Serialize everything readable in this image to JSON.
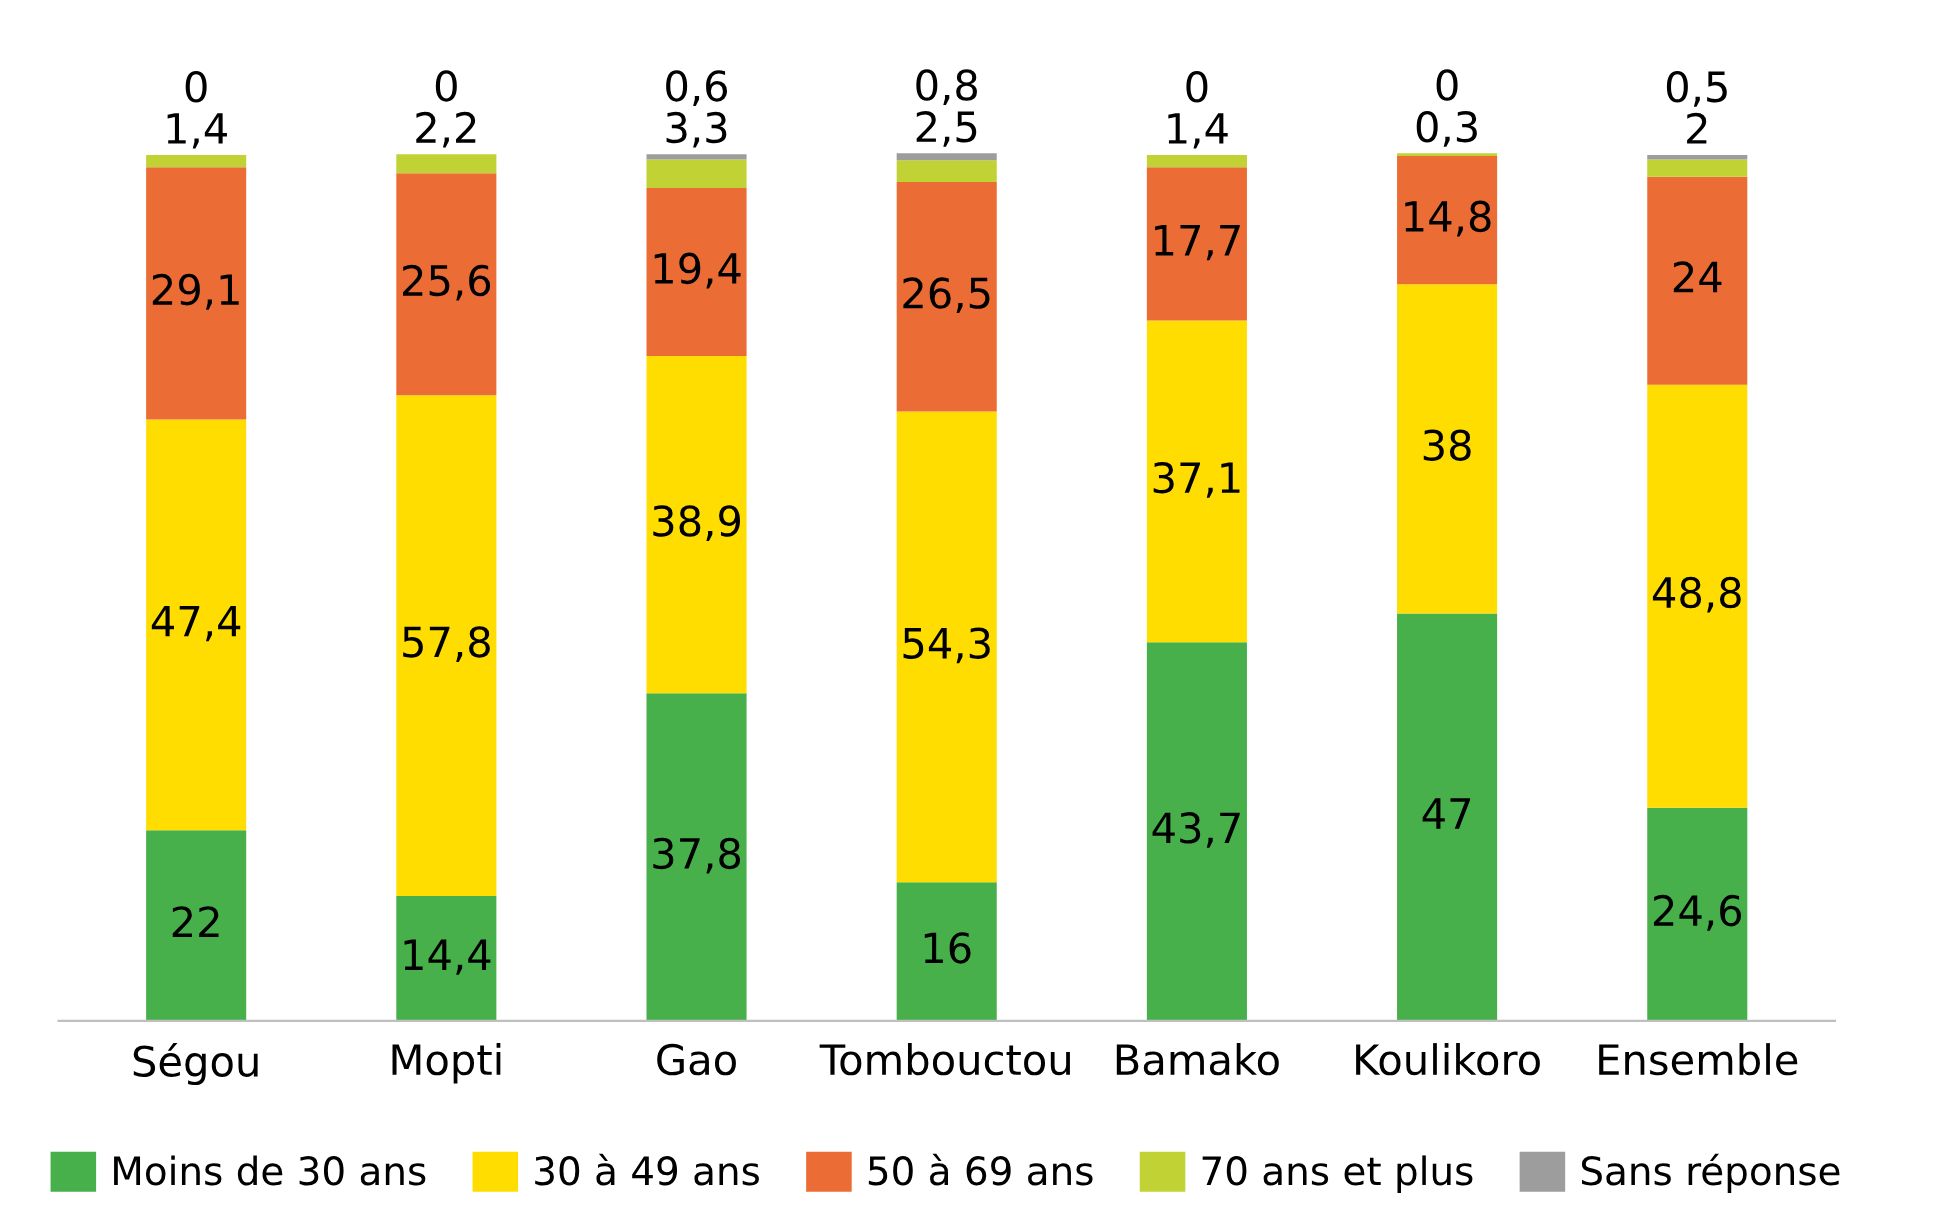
{
  "chart_data": {
    "type": "bar",
    "stacked": true,
    "categories": [
      "Ségou",
      "Mopti",
      "Gao",
      "Tombouctou",
      "Bamako",
      "Koulikoro",
      "Ensemble"
    ],
    "series": [
      {
        "name": "Moins de 30 ans",
        "color": "#47b04b",
        "values": [
          22,
          14.4,
          37.8,
          16,
          43.7,
          47,
          24.6
        ],
        "value_labels": [
          "22",
          "14,4",
          "37,8",
          "16",
          "43,7",
          "47",
          "24,6"
        ]
      },
      {
        "name": "30 à 49 ans",
        "color": "#ffdd00",
        "values": [
          47.4,
          57.8,
          38.9,
          54.3,
          37.1,
          38,
          48.8
        ],
        "value_labels": [
          "47,4",
          "57,8",
          "38,9",
          "54,3",
          "37,1",
          "38",
          "48,8"
        ]
      },
      {
        "name": "50 à 69 ans",
        "color": "#eb6d35",
        "values": [
          29.1,
          25.6,
          19.4,
          26.5,
          17.7,
          14.8,
          24
        ],
        "value_labels": [
          "29,1",
          "25,6",
          "19,4",
          "26,5",
          "17,7",
          "14,8",
          "24"
        ]
      },
      {
        "name": "70 ans et plus",
        "color": "#c1d235",
        "values": [
          1.4,
          2.2,
          3.3,
          2.5,
          1.4,
          0.3,
          2
        ],
        "value_labels": [
          "1,4",
          "2,2",
          "3,3",
          "2,5",
          "1,4",
          "0,3",
          "2"
        ]
      },
      {
        "name": "Sans réponse",
        "color": "#9d9d9d",
        "values": [
          0,
          0,
          0.6,
          0.8,
          0,
          0,
          0.5
        ],
        "value_labels": [
          "0",
          "0",
          "0,6",
          "0,8",
          "0",
          "0",
          "0,5"
        ]
      }
    ],
    "legend": "bottom",
    "grid": false
  }
}
